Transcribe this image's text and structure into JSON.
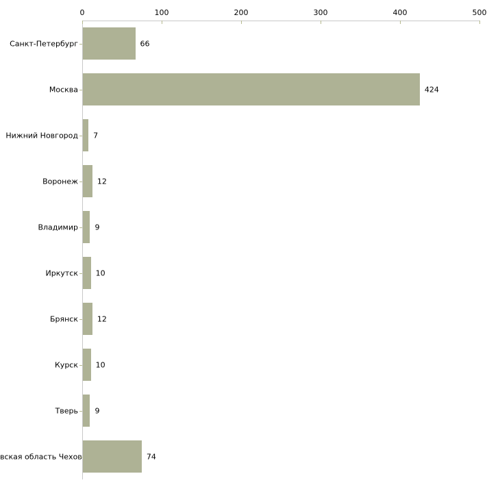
{
  "chart_data": {
    "type": "bar",
    "orientation": "horizontal",
    "title": "",
    "xlabel": "",
    "ylabel": "",
    "categories": [
      "Санкт-Петербург",
      "Москва",
      "Нижний Новгород",
      "Воронеж",
      "Владимир",
      "Иркутск",
      "Брянск",
      "Курск",
      "Тверь",
      "вская область Чехов"
    ],
    "values": [
      66,
      424,
      7,
      12,
      9,
      10,
      12,
      10,
      9,
      74
    ],
    "value_labels": [
      "66",
      "424",
      "7",
      "12",
      "9",
      "10",
      "12",
      "10",
      "9",
      "74"
    ],
    "xlim": [
      0,
      500
    ],
    "x_ticks": [
      "0",
      "100",
      "200",
      "300",
      "400",
      "500"
    ],
    "x_tick_values": [
      0,
      100,
      200,
      300,
      400,
      500
    ],
    "grid": false,
    "legend": "none",
    "axis_position": "top",
    "colors": {
      "bar_fill": "#aeb295",
      "axis_line": "#c8c8c8",
      "tick_mark": "#b5b98e",
      "text": "#000000",
      "background": "#ffffff"
    }
  }
}
